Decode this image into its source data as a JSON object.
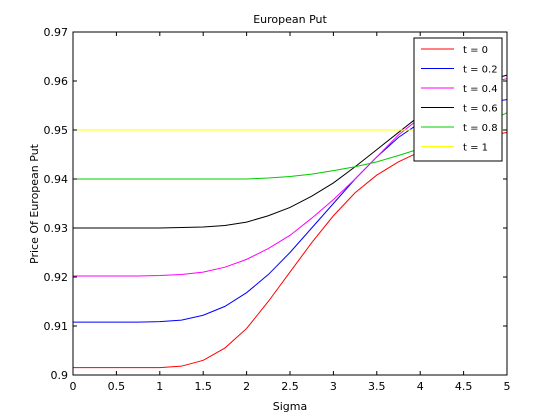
{
  "chart_data": {
    "type": "line",
    "title": "European Put",
    "xlabel": "Sigma",
    "ylabel": "Price Of European Put",
    "xlim": [
      0,
      5
    ],
    "ylim": [
      0.9,
      0.97
    ],
    "xticks": [
      0,
      0.5,
      1,
      1.5,
      2,
      2.5,
      3,
      3.5,
      4,
      4.5,
      5
    ],
    "xtick_labels": [
      "0",
      "0.5",
      "1",
      "1.5",
      "2",
      "2.5",
      "3",
      "3.5",
      "4",
      "4.5",
      "5"
    ],
    "yticks": [
      0.9,
      0.91,
      0.92,
      0.93,
      0.94,
      0.95,
      0.96,
      0.97
    ],
    "ytick_labels": [
      "0.9",
      "0.91",
      "0.92",
      "0.93",
      "0.94",
      "0.95",
      "0.96",
      "0.97"
    ],
    "grid": false,
    "legend_position": "top-right",
    "x": [
      0,
      0.25,
      0.5,
      0.75,
      1,
      1.25,
      1.5,
      1.75,
      2,
      2.25,
      2.5,
      2.75,
      3,
      3.25,
      3.5,
      3.75,
      4,
      4.25,
      4.5,
      4.75,
      5
    ],
    "series": [
      {
        "name": "t = 0",
        "color": "#ff0000",
        "values": [
          0.9015,
          0.9015,
          0.9015,
          0.9015,
          0.9015,
          0.9018,
          0.903,
          0.9055,
          0.9095,
          0.915,
          0.921,
          0.927,
          0.9325,
          0.9372,
          0.9408,
          0.9435,
          0.9456,
          0.947,
          0.9482,
          0.9488,
          0.9495
        ]
      },
      {
        "name": "t = 0.2",
        "color": "#0000ff",
        "values": [
          0.9108,
          0.9108,
          0.9108,
          0.9108,
          0.9109,
          0.9112,
          0.9122,
          0.914,
          0.9168,
          0.9205,
          0.925,
          0.93,
          0.935,
          0.94,
          0.9445,
          0.9485,
          0.9515,
          0.9535,
          0.9548,
          0.9556,
          0.9562
        ]
      },
      {
        "name": "t = 0.4",
        "color": "#ff00ff",
        "values": [
          0.9202,
          0.9202,
          0.9202,
          0.9202,
          0.9203,
          0.9205,
          0.921,
          0.922,
          0.9236,
          0.9258,
          0.9285,
          0.932,
          0.9358,
          0.94,
          0.9445,
          0.949,
          0.9525,
          0.9555,
          0.9578,
          0.9593,
          0.9605
        ]
      },
      {
        "name": "t = 0.6",
        "color": "#000000",
        "values": [
          0.93,
          0.93,
          0.93,
          0.93,
          0.93,
          0.9301,
          0.9302,
          0.9305,
          0.9312,
          0.9325,
          0.9342,
          0.9365,
          0.9392,
          0.9425,
          0.946,
          0.9495,
          0.953,
          0.956,
          0.9585,
          0.96,
          0.9612
        ]
      },
      {
        "name": "t = 0.8",
        "color": "#00cc00",
        "values": [
          0.94,
          0.94,
          0.94,
          0.94,
          0.94,
          0.94,
          0.94,
          0.94,
          0.94,
          0.9402,
          0.9405,
          0.941,
          0.9417,
          0.9425,
          0.9435,
          0.9448,
          0.9462,
          0.9478,
          0.9495,
          0.9515,
          0.9535
        ]
      },
      {
        "name": "t = 1",
        "color": "#ffff00",
        "values": [
          0.95,
          0.95,
          0.95,
          0.95,
          0.95,
          0.95,
          0.95,
          0.95,
          0.95,
          0.95,
          0.95,
          0.95,
          0.95,
          0.95,
          0.95,
          0.95,
          0.95,
          0.95,
          0.95,
          0.95,
          0.95
        ]
      }
    ]
  }
}
